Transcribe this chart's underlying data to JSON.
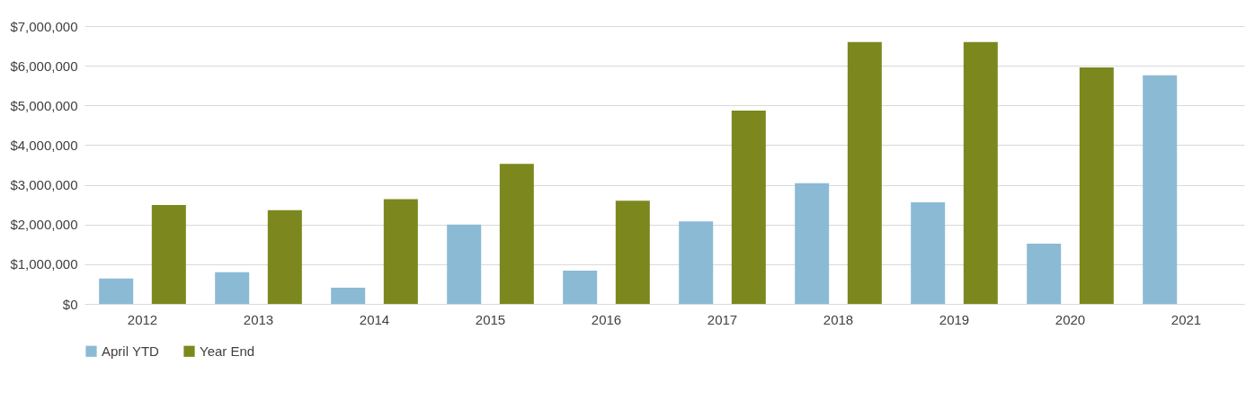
{
  "chart_data": {
    "type": "bar",
    "categories": [
      "2012",
      "2013",
      "2014",
      "2015",
      "2016",
      "2017",
      "2018",
      "2019",
      "2020",
      "2021"
    ],
    "series": [
      {
        "name": "April YTD",
        "color": "#8bbad5",
        "values": [
          640000,
          800000,
          410000,
          2000000,
          840000,
          2080000,
          3040000,
          2560000,
          1520000,
          5760000
        ]
      },
      {
        "name": "Year End",
        "color": "#7c881e",
        "values": [
          2490000,
          2360000,
          2640000,
          3530000,
          2600000,
          4870000,
          6600000,
          6600000,
          5960000,
          null
        ]
      }
    ],
    "ylim": [
      0,
      7000000
    ],
    "yticks": [
      {
        "value": 0,
        "label": "$0"
      },
      {
        "value": 1000000,
        "label": "$1,000,000"
      },
      {
        "value": 2000000,
        "label": "$2,000,000"
      },
      {
        "value": 3000000,
        "label": "$3,000,000"
      },
      {
        "value": 4000000,
        "label": "$4,000,000"
      },
      {
        "value": 5000000,
        "label": "$5,000,000"
      },
      {
        "value": 6000000,
        "label": "$6,000,000"
      },
      {
        "value": 7000000,
        "label": "$7,000,000"
      }
    ],
    "grid": "y",
    "legend": "bottom"
  }
}
